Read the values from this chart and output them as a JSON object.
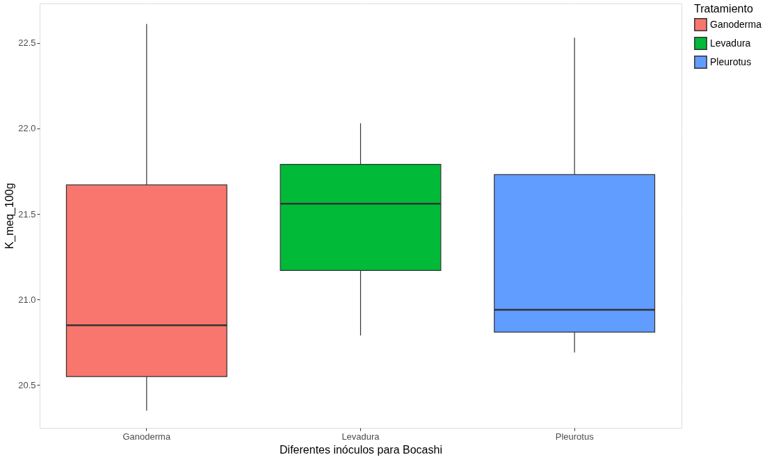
{
  "chart_data": {
    "type": "box",
    "xlabel": "Diferentes inóculos para Bocashi",
    "ylabel": "K_meq_100g",
    "legend_title": "Tratamiento",
    "categories": [
      "Ganoderma",
      "Levadura",
      "Pleurotus"
    ],
    "series": [
      {
        "name": "Ganoderma",
        "color": "#f8766d",
        "boxes": [
          {
            "low": 20.35,
            "q1": 20.55,
            "median": 20.85,
            "q3": 21.67,
            "high": 22.61
          },
          null,
          null
        ]
      },
      {
        "name": "Levadura",
        "color": "#00ba38",
        "boxes": [
          null,
          {
            "low": 20.79,
            "q1": 21.17,
            "median": 21.56,
            "q3": 21.79,
            "high": 22.03
          },
          null
        ]
      },
      {
        "name": "Pleurotus",
        "color": "#619cff",
        "boxes": [
          null,
          null,
          {
            "low": 20.69,
            "q1": 20.81,
            "median": 20.94,
            "q3": 21.73,
            "high": 22.53
          }
        ]
      }
    ],
    "ylim": [
      20.25,
      22.73
    ],
    "yticks": [
      20.5,
      {
        "value": 21,
        "label": "21.0"
      },
      21.5,
      {
        "value": 22,
        "label": "22.0"
      },
      22.5
    ],
    "grid": true,
    "legend": "right"
  }
}
